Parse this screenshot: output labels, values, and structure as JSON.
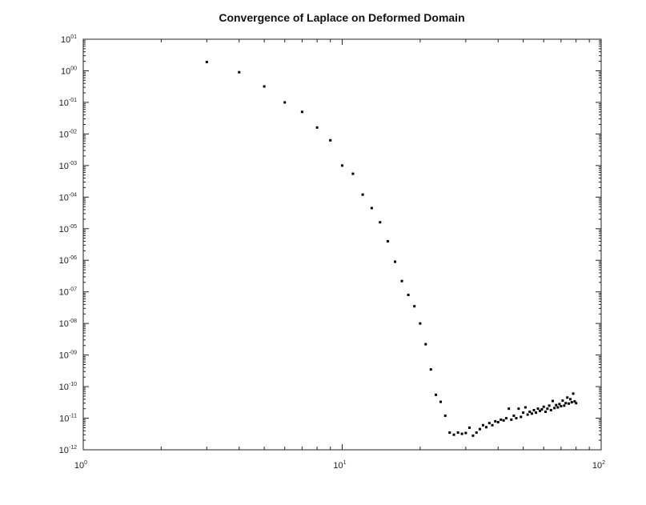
{
  "chart_data": {
    "type": "scatter",
    "title": "Convergence of Laplace on Deformed Domain",
    "xlabel": "",
    "ylabel": "",
    "xscale": "log",
    "yscale": "log",
    "xlim": [
      1,
      100
    ],
    "ylim": [
      1e-12,
      10
    ],
    "grid": false,
    "legend": "none",
    "marker_color": "#000000",
    "x_ticks": [
      {
        "base": "10",
        "exp": "0"
      },
      {
        "base": "10",
        "exp": "1"
      },
      {
        "base": "10",
        "exp": "2"
      }
    ],
    "y_ticks": [
      {
        "base": "10",
        "exp": "-12"
      },
      {
        "base": "10",
        "exp": "-11"
      },
      {
        "base": "10",
        "exp": "-10"
      },
      {
        "base": "10",
        "exp": "-09"
      },
      {
        "base": "10",
        "exp": "-08"
      },
      {
        "base": "10",
        "exp": "-07"
      },
      {
        "base": "10",
        "exp": "-06"
      },
      {
        "base": "10",
        "exp": "-05"
      },
      {
        "base": "10",
        "exp": "-04"
      },
      {
        "base": "10",
        "exp": "-03"
      },
      {
        "base": "10",
        "exp": "-02"
      },
      {
        "base": "10",
        "exp": "-01"
      },
      {
        "base": "10",
        "exp": "00"
      },
      {
        "base": "10",
        "exp": "01"
      }
    ],
    "series": [
      {
        "x": [
          3,
          4,
          5,
          6,
          7,
          8,
          9,
          10,
          11,
          12,
          13,
          14,
          15,
          16,
          17,
          18,
          19,
          20,
          21,
          22,
          23,
          24,
          25,
          26,
          27,
          28,
          29,
          30,
          31,
          32,
          33,
          34,
          35,
          36,
          37,
          38,
          39,
          40,
          41,
          42,
          43,
          44,
          45,
          46,
          47,
          48,
          49,
          50,
          51,
          52,
          53,
          54,
          55,
          56,
          57,
          58,
          59,
          60,
          61,
          62,
          63,
          64,
          65,
          66,
          67,
          68,
          69,
          70,
          71,
          72,
          73,
          74,
          75,
          76,
          77,
          78,
          79,
          80
        ],
        "y": [
          1.9,
          0.9,
          0.32,
          0.1,
          0.05,
          0.016,
          0.0063,
          0.001,
          0.00055,
          0.00012,
          4.5e-05,
          1.6e-05,
          4e-06,
          9e-07,
          2.2e-07,
          8e-08,
          3.5e-08,
          1e-08,
          2.2e-09,
          3.5e-10,
          5.5e-11,
          3.3e-11,
          1.2e-11,
          3.5e-12,
          3e-12,
          3.5e-12,
          3.2e-12,
          3.4e-12,
          5e-12,
          2.8e-12,
          3.5e-12,
          4.5e-12,
          6e-12,
          5.2e-12,
          7e-12,
          6e-12,
          8e-12,
          7.5e-12,
          9e-12,
          8.5e-12,
          1e-11,
          2e-11,
          9e-12,
          1.2e-11,
          1e-11,
          2e-11,
          1.1e-11,
          1.5e-11,
          2.2e-11,
          1.3e-11,
          1.6e-11,
          1.4e-11,
          1.8e-11,
          1.5e-11,
          2e-11,
          1.7e-11,
          1.9e-11,
          2.3e-11,
          1.6e-11,
          2e-11,
          2.5e-11,
          1.8e-11,
          3.5e-11,
          2.1e-11,
          2.6e-11,
          2.2e-11,
          2.8e-11,
          2.4e-11,
          3.6e-11,
          2.5e-11,
          3e-11,
          4.5e-11,
          2.9e-11,
          4e-11,
          3.2e-11,
          6e-11,
          3.4e-11,
          3e-11
        ]
      }
    ]
  }
}
